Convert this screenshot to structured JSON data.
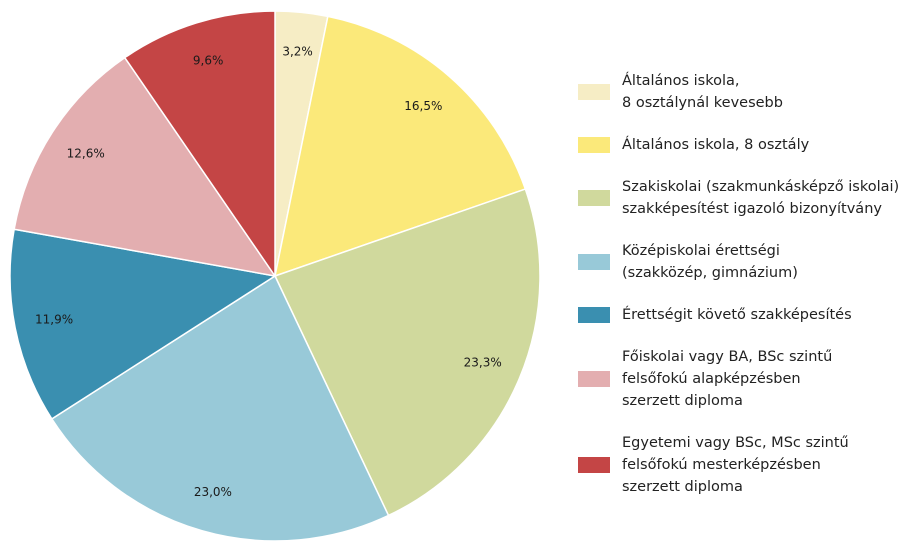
{
  "chart_data": {
    "type": "pie",
    "categories": [
      "Általános iskola,\n8 osztálynál kevesebb",
      "Általános iskola, 8 osztály",
      "Szakiskolai (szakmunkásképző iskolai)\nszakképesítést igazoló bizonyítvány",
      "Középiskolai érettségi\n(szakközép, gimnázium)",
      "Érettségit követő szakképesítés",
      "Főiskolai vagy BA, BSc szintű\nfelsőfokú alapképzésben\nszerzett diploma",
      "Egyetemi vagy BSc, MSc szintű\nfelsőfokú mesterképzésben\nszerzett diploma"
    ],
    "values": [
      3.2,
      16.5,
      23.3,
      23.0,
      11.9,
      12.6,
      9.6
    ],
    "value_labels": [
      "3,2%",
      "16,5%",
      "23,3%",
      "23,0%",
      "11,9%",
      "12,6%",
      "9,6%"
    ],
    "colors": [
      "#f6edc5",
      "#fbe97a",
      "#d0d99d",
      "#98c9d8",
      "#3a8fb0",
      "#e3aeb0",
      "#c44545"
    ],
    "legend": "right"
  }
}
